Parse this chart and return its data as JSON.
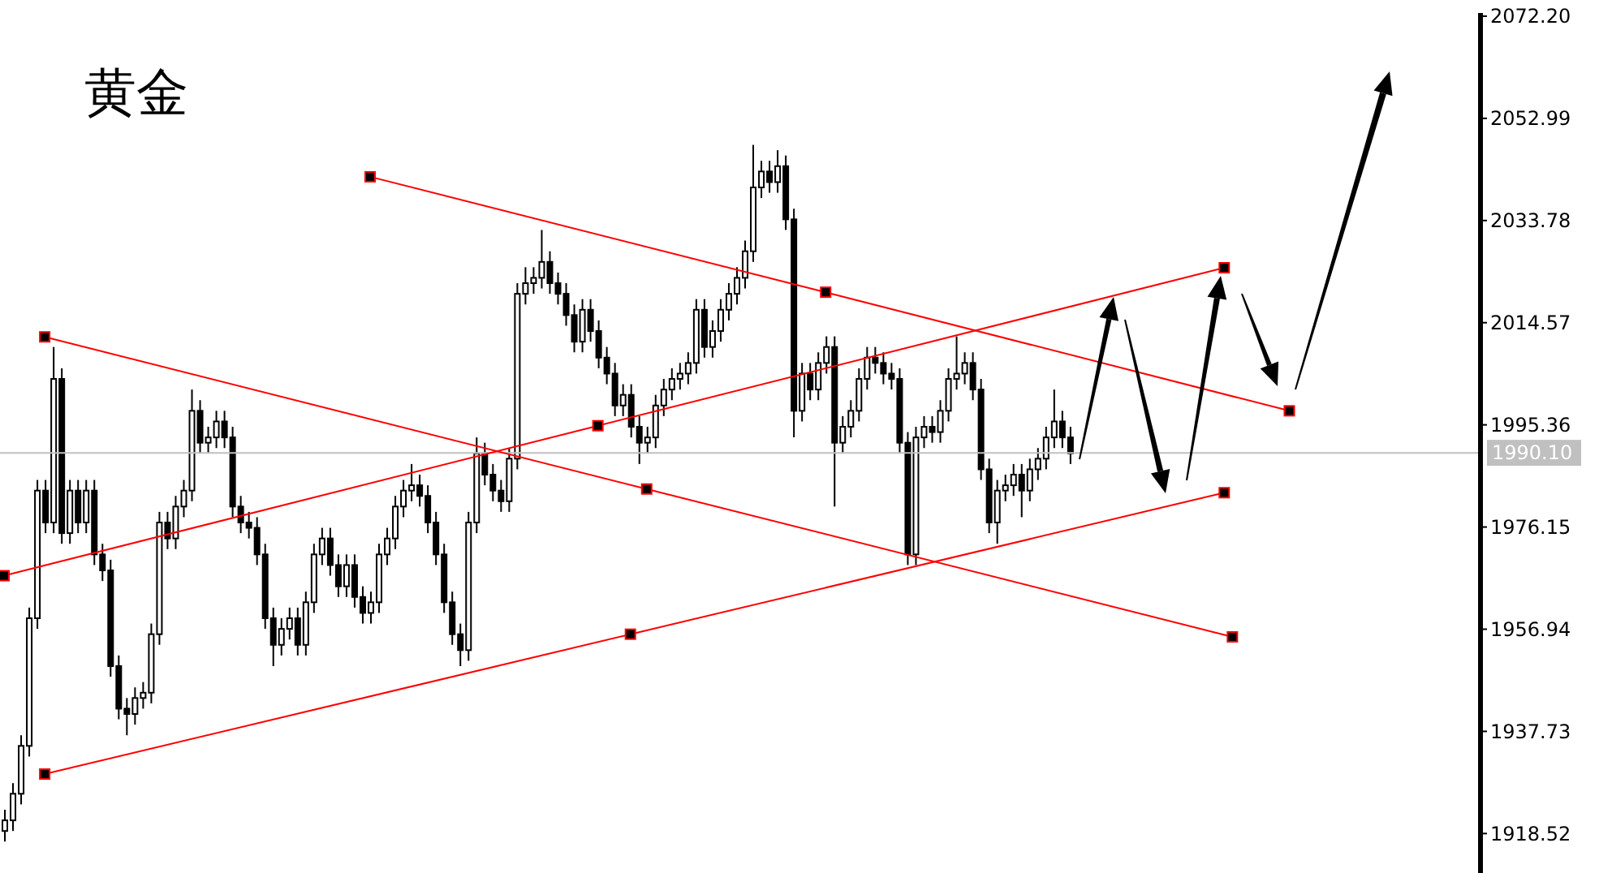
{
  "chart_data": {
    "type": "candlestick",
    "title": "黄金",
    "categories": [
      null,
      null,
      null,
      null,
      null,
      null,
      null,
      null,
      null,
      null,
      null,
      null,
      null,
      null,
      null,
      null,
      null,
      null,
      null,
      null,
      null,
      null,
      null,
      null,
      null,
      null,
      null,
      null,
      null,
      null,
      null,
      null,
      null,
      null,
      null,
      null,
      null,
      null,
      null,
      null,
      null,
      null,
      null,
      null,
      null,
      null,
      null,
      null,
      null,
      null,
      null,
      null,
      null,
      null,
      null,
      null,
      null,
      null,
      null,
      null,
      null,
      null,
      null,
      null,
      null,
      null,
      null,
      null,
      null,
      null,
      null,
      null,
      null,
      null,
      null,
      null,
      null,
      null,
      null,
      null,
      null,
      null,
      null,
      null,
      null,
      null,
      null,
      null,
      null,
      null,
      null,
      null,
      null,
      null,
      null,
      null,
      null,
      null,
      null,
      null,
      null,
      null,
      null,
      null,
      null,
      null,
      null,
      null,
      null,
      null,
      null,
      null,
      null,
      null,
      null,
      null,
      null,
      null,
      null,
      null,
      null,
      null,
      null,
      null,
      null,
      null,
      null,
      null,
      null,
      null,
      null,
      null,
      null,
      null,
      null,
      null,
      null,
      null,
      null,
      null,
      null,
      null,
      null,
      null,
      null,
      null,
      null,
      null,
      null,
      null,
      null,
      null,
      null,
      null,
      null,
      null,
      null,
      null,
      null,
      null,
      null,
      null,
      null,
      null,
      null,
      null,
      null,
      null,
      null,
      null,
      null,
      null,
      null,
      null,
      null,
      null,
      null,
      null,
      null,
      null,
      null,
      null
    ],
    "ohlc": [
      [
        1919,
        1923,
        1917,
        1921
      ],
      [
        1921,
        1928,
        1919,
        1926
      ],
      [
        1926,
        1937,
        1924,
        1935
      ],
      [
        1935,
        1961,
        1933,
        1959
      ],
      [
        1959,
        1985,
        1957,
        1983
      ],
      [
        1983,
        1985,
        1975,
        1977
      ],
      [
        1977,
        2010,
        1975,
        2004
      ],
      [
        2004,
        2006,
        1973,
        1975
      ],
      [
        1975,
        1985,
        1973,
        1983
      ],
      [
        1983,
        1985,
        1975,
        1977
      ],
      [
        1977,
        1985,
        1975,
        1983
      ],
      [
        1983,
        1985,
        1969,
        1971
      ],
      [
        1971,
        1973,
        1966,
        1968
      ],
      [
        1968,
        1970,
        1948,
        1950
      ],
      [
        1950,
        1952,
        1940,
        1942
      ],
      [
        1942,
        1944,
        1937,
        1941
      ],
      [
        1941,
        1946,
        1939,
        1944
      ],
      [
        1944,
        1947,
        1942,
        1945
      ],
      [
        1945,
        1958,
        1943,
        1956
      ],
      [
        1956,
        1979,
        1954,
        1977
      ],
      [
        1977,
        1979,
        1972,
        1974
      ],
      [
        1974,
        1982,
        1972,
        1980
      ],
      [
        1980,
        1985,
        1978,
        1983
      ],
      [
        1983,
        2002,
        1981,
        1998
      ],
      [
        1998,
        2000,
        1990,
        1992
      ],
      [
        1992,
        1995,
        1990,
        1993
      ],
      [
        1993,
        1998,
        1991,
        1996
      ],
      [
        1996,
        1998,
        1991,
        1993
      ],
      [
        1993,
        1995,
        1978,
        1980
      ],
      [
        1980,
        1982,
        1975,
        1977
      ],
      [
        1977,
        1979,
        1974,
        1976
      ],
      [
        1976,
        1978,
        1969,
        1971
      ],
      [
        1971,
        1973,
        1957,
        1959
      ],
      [
        1959,
        1961,
        1950,
        1954
      ],
      [
        1954,
        1959,
        1952,
        1957
      ],
      [
        1957,
        1961,
        1955,
        1959
      ],
      [
        1959,
        1961,
        1952,
        1954
      ],
      [
        1954,
        1964,
        1952,
        1962
      ],
      [
        1962,
        1973,
        1960,
        1971
      ],
      [
        1971,
        1976,
        1969,
        1974
      ],
      [
        1974,
        1976,
        1967,
        1969
      ],
      [
        1969,
        1971,
        1963,
        1965
      ],
      [
        1965,
        1971,
        1963,
        1969
      ],
      [
        1969,
        1971,
        1961,
        1963
      ],
      [
        1963,
        1965,
        1958,
        1960
      ],
      [
        1960,
        1964,
        1958,
        1962
      ],
      [
        1962,
        1973,
        1960,
        1971
      ],
      [
        1971,
        1976,
        1969,
        1974
      ],
      [
        1974,
        1982,
        1972,
        1980
      ],
      [
        1980,
        1985,
        1978,
        1983
      ],
      [
        1983,
        1988,
        1981,
        1984
      ],
      [
        1984,
        1986,
        1980,
        1982
      ],
      [
        1982,
        1984,
        1975,
        1977
      ],
      [
        1977,
        1979,
        1969,
        1971
      ],
      [
        1971,
        1973,
        1960,
        1962
      ],
      [
        1962,
        1964,
        1954,
        1956
      ],
      [
        1956,
        1958,
        1950,
        1953
      ],
      [
        1953,
        1979,
        1951,
        1977
      ],
      [
        1977,
        1993,
        1975,
        1990
      ],
      [
        1990,
        1992,
        1984,
        1986
      ],
      [
        1986,
        1988,
        1981,
        1983
      ],
      [
        1983,
        1985,
        1979,
        1981
      ],
      [
        1981,
        1991,
        1979,
        1989
      ],
      [
        1989,
        2022,
        1987,
        2020
      ],
      [
        2020,
        2025,
        2018,
        2022
      ],
      [
        2022,
        2025,
        2020,
        2023
      ],
      [
        2023,
        2032,
        2021,
        2026
      ],
      [
        2026,
        2028,
        2020,
        2022
      ],
      [
        2022,
        2024,
        2018,
        2020
      ],
      [
        2020,
        2022,
        2014,
        2016
      ],
      [
        2016,
        2018,
        2009,
        2011
      ],
      [
        2011,
        2019,
        2009,
        2017
      ],
      [
        2017,
        2019,
        2011,
        2013
      ],
      [
        2013,
        2015,
        2006,
        2008
      ],
      [
        2008,
        2010,
        2003,
        2005
      ],
      [
        2005,
        2007,
        1997,
        1999
      ],
      [
        1999,
        2003,
        1997,
        2001
      ],
      [
        2001,
        2003,
        1993,
        1995
      ],
      [
        1995,
        1997,
        1988,
        1992
      ],
      [
        1992,
        1995,
        1990,
        1993
      ],
      [
        1993,
        2001,
        1991,
        1999
      ],
      [
        1999,
        2004,
        1997,
        2002
      ],
      [
        2002,
        2006,
        2000,
        2004
      ],
      [
        2004,
        2007,
        2002,
        2005
      ],
      [
        2005,
        2009,
        2003,
        2007
      ],
      [
        2007,
        2019,
        2005,
        2017
      ],
      [
        2017,
        2019,
        2008,
        2010
      ],
      [
        2010,
        2015,
        2008,
        2013
      ],
      [
        2013,
        2019,
        2011,
        2017
      ],
      [
        2017,
        2022,
        2015,
        2020
      ],
      [
        2020,
        2025,
        2018,
        2023
      ],
      [
        2023,
        2030,
        2021,
        2028
      ],
      [
        2028,
        2048,
        2026,
        2040
      ],
      [
        2040,
        2045,
        2038,
        2043
      ],
      [
        2043,
        2045,
        2039,
        2041
      ],
      [
        2041,
        2047,
        2039,
        2044
      ],
      [
        2044,
        2046,
        2032,
        2034
      ],
      [
        2034,
        2036,
        1993,
        1998
      ],
      [
        1998,
        2007,
        1996,
        2005
      ],
      [
        2005,
        2007,
        2000,
        2002
      ],
      [
        2002,
        2009,
        2000,
        2007
      ],
      [
        2007,
        2012,
        2005,
        2010
      ],
      [
        2010,
        2012,
        1980,
        1992
      ],
      [
        1992,
        1997,
        1990,
        1995
      ],
      [
        1995,
        2000,
        1993,
        1998
      ],
      [
        1998,
        2006,
        1996,
        2004
      ],
      [
        2004,
        2010,
        2002,
        2008
      ],
      [
        2008,
        2010,
        2005,
        2007
      ],
      [
        2007,
        2009,
        2003,
        2005
      ],
      [
        2005,
        2007,
        2002,
        2004
      ],
      [
        2004,
        2006,
        1990,
        1992
      ],
      [
        1992,
        1994,
        1969,
        1971
      ],
      [
        1971,
        1995,
        1969,
        1993
      ],
      [
        1993,
        1997,
        1991,
        1995
      ],
      [
        1995,
        1997,
        1992,
        1994
      ],
      [
        1994,
        2000,
        1992,
        1998
      ],
      [
        1998,
        2006,
        1996,
        2004
      ],
      [
        2004,
        2012,
        2002,
        2005
      ],
      [
        2005,
        2009,
        2003,
        2007
      ],
      [
        2007,
        2009,
        2000,
        2002
      ],
      [
        2002,
        2004,
        1985,
        1987
      ],
      [
        1987,
        1989,
        1975,
        1977
      ],
      [
        1977,
        1985,
        1973,
        1983
      ],
      [
        1983,
        1986,
        1981,
        1984
      ],
      [
        1984,
        1988,
        1982,
        1986
      ],
      [
        1986,
        1988,
        1978,
        1983
      ],
      [
        1983,
        1989,
        1981,
        1987
      ],
      [
        1987,
        1991,
        1985,
        1989
      ],
      [
        1989,
        1995,
        1987,
        1993
      ],
      [
        1993,
        2002,
        1991,
        1996
      ],
      [
        1996,
        1998,
        1991,
        1993
      ],
      [
        1993,
        1995,
        1988,
        1990
      ],
      null,
      null,
      null,
      null,
      null,
      null,
      null,
      null,
      null,
      null,
      null,
      null,
      null,
      null,
      null,
      null,
      null,
      null,
      null,
      null,
      null,
      null,
      null,
      null,
      null,
      null,
      null,
      null,
      null,
      null,
      null,
      null,
      null,
      null,
      null,
      null,
      null,
      null,
      null,
      null,
      null,
      null,
      null,
      null,
      null,
      null,
      null,
      null,
      null,
      null
    ],
    "series": [
      {
        "type": "line",
        "color": "#ff0000",
        "values": [
          null,
          null,
          null,
          null,
          null,
          null,
          null,
          null,
          null,
          null,
          null,
          null,
          null,
          null,
          null,
          null,
          null,
          null,
          null,
          null,
          null,
          null,
          null,
          null,
          null,
          null,
          null,
          null,
          null,
          null,
          null,
          null,
          null,
          null,
          null,
          null,
          null,
          null,
          null,
          null,
          null,
          null,
          null,
          null,
          null,
          2042,
          null,
          null,
          null,
          null,
          null,
          null,
          null,
          null,
          null,
          null,
          null,
          null,
          null,
          null,
          null,
          null,
          null,
          null,
          null,
          null,
          null,
          null,
          null,
          null,
          null,
          null,
          null,
          null,
          null,
          null,
          null,
          null,
          null,
          null,
          null,
          null,
          null,
          null,
          null,
          null,
          null,
          null,
          null,
          null,
          null,
          null,
          null,
          null,
          null,
          null,
          null,
          null,
          null,
          null,
          null,
          2020.3,
          null,
          null,
          null,
          null,
          null,
          null,
          null,
          null,
          null,
          null,
          null,
          null,
          null,
          null,
          null,
          null,
          null,
          null,
          null,
          null,
          null,
          null,
          null,
          null,
          null,
          null,
          null,
          null,
          null,
          null,
          null,
          null,
          null,
          null,
          null,
          null,
          null,
          null,
          null,
          null,
          null,
          null,
          null,
          null,
          null,
          null,
          null,
          null,
          null,
          null,
          null,
          null,
          null,
          null,
          null,
          null,
          1998,
          null,
          null,
          null,
          null,
          null,
          null,
          null,
          null,
          null,
          null,
          null,
          null,
          null,
          null,
          null,
          null,
          null,
          null,
          null,
          null,
          null,
          null,
          null
        ]
      },
      {
        "type": "line",
        "color": "#ff0000",
        "values": [
          null,
          null,
          null,
          null,
          null,
          2011.9,
          null,
          null,
          null,
          null,
          null,
          null,
          null,
          null,
          null,
          null,
          null,
          null,
          null,
          null,
          null,
          null,
          null,
          null,
          null,
          null,
          null,
          null,
          null,
          null,
          null,
          null,
          null,
          null,
          null,
          null,
          null,
          null,
          null,
          null,
          null,
          null,
          null,
          null,
          null,
          null,
          null,
          null,
          null,
          null,
          null,
          null,
          null,
          null,
          null,
          null,
          null,
          null,
          null,
          null,
          null,
          null,
          null,
          null,
          null,
          null,
          null,
          null,
          null,
          null,
          null,
          null,
          null,
          null,
          null,
          null,
          null,
          null,
          null,
          1983.3,
          null,
          null,
          null,
          null,
          null,
          null,
          null,
          null,
          null,
          null,
          null,
          null,
          null,
          null,
          null,
          null,
          null,
          null,
          null,
          null,
          null,
          null,
          null,
          null,
          null,
          null,
          null,
          null,
          null,
          null,
          null,
          null,
          null,
          null,
          null,
          null,
          null,
          null,
          null,
          null,
          null,
          null,
          null,
          null,
          null,
          null,
          null,
          null,
          null,
          null,
          null,
          null,
          null,
          null,
          null,
          null,
          null,
          null,
          null,
          null,
          null,
          null,
          null,
          null,
          null,
          null,
          null,
          null,
          null,
          null,
          null,
          1955.5,
          null,
          null,
          null,
          null,
          null,
          null,
          null,
          null,
          null,
          null,
          null,
          null,
          null,
          null,
          null,
          null,
          null,
          null,
          null,
          null,
          null,
          null,
          null,
          null,
          null,
          null,
          null,
          null,
          null,
          null
        ]
      },
      {
        "type": "line",
        "color": "#ff0000",
        "values": [
          1967,
          null,
          null,
          null,
          null,
          null,
          null,
          null,
          null,
          null,
          null,
          null,
          null,
          null,
          null,
          null,
          null,
          null,
          null,
          null,
          null,
          null,
          null,
          null,
          null,
          null,
          null,
          null,
          null,
          null,
          null,
          null,
          null,
          null,
          null,
          null,
          null,
          null,
          null,
          null,
          null,
          null,
          null,
          null,
          null,
          null,
          null,
          null,
          null,
          null,
          null,
          null,
          null,
          null,
          null,
          null,
          null,
          null,
          null,
          null,
          null,
          null,
          null,
          null,
          null,
          null,
          null,
          null,
          null,
          null,
          null,
          null,
          null,
          1995.2,
          null,
          null,
          null,
          null,
          null,
          null,
          null,
          null,
          null,
          null,
          null,
          null,
          null,
          null,
          null,
          null,
          null,
          null,
          null,
          null,
          null,
          null,
          null,
          null,
          null,
          null,
          null,
          null,
          null,
          null,
          null,
          null,
          null,
          null,
          null,
          null,
          null,
          null,
          null,
          null,
          null,
          null,
          null,
          null,
          null,
          null,
          null,
          null,
          null,
          null,
          null,
          null,
          null,
          null,
          null,
          null,
          null,
          null,
          null,
          null,
          null,
          null,
          null,
          null,
          null,
          null,
          null,
          null,
          null,
          null,
          null,
          null,
          null,
          null,
          null,
          null,
          2024.9,
          null,
          null,
          null,
          null,
          null,
          null,
          null,
          null,
          null,
          null,
          null,
          null,
          null,
          null,
          null,
          null,
          null,
          null,
          null,
          null,
          null,
          null,
          null,
          null,
          null,
          null,
          null,
          null,
          null,
          null,
          null
        ]
      },
      {
        "type": "line",
        "color": "#ff0000",
        "values": [
          null,
          null,
          null,
          null,
          null,
          1929.7,
          null,
          null,
          null,
          null,
          null,
          null,
          null,
          null,
          null,
          null,
          null,
          null,
          null,
          null,
          null,
          null,
          null,
          null,
          null,
          null,
          null,
          null,
          null,
          null,
          null,
          null,
          null,
          null,
          null,
          null,
          null,
          null,
          null,
          null,
          null,
          null,
          null,
          null,
          null,
          null,
          null,
          null,
          null,
          null,
          null,
          null,
          null,
          null,
          null,
          null,
          null,
          null,
          null,
          null,
          null,
          null,
          null,
          null,
          null,
          null,
          null,
          null,
          null,
          null,
          null,
          null,
          null,
          null,
          null,
          null,
          null,
          1956,
          null,
          null,
          null,
          null,
          null,
          null,
          null,
          null,
          null,
          null,
          null,
          null,
          null,
          null,
          null,
          null,
          null,
          null,
          null,
          null,
          null,
          null,
          null,
          null,
          null,
          null,
          null,
          null,
          null,
          null,
          null,
          null,
          null,
          null,
          null,
          null,
          null,
          null,
          null,
          null,
          null,
          null,
          null,
          null,
          null,
          null,
          null,
          null,
          null,
          null,
          null,
          null,
          null,
          null,
          null,
          null,
          null,
          null,
          null,
          null,
          null,
          null,
          null,
          null,
          null,
          null,
          null,
          null,
          null,
          null,
          null,
          null,
          1982.6,
          null,
          null,
          null,
          null,
          null,
          null,
          null,
          null,
          null,
          null,
          null,
          null,
          null,
          null,
          null,
          null,
          null,
          null,
          null,
          null,
          null,
          null,
          null,
          null,
          null,
          null,
          null,
          null,
          null,
          null,
          null
        ]
      }
    ],
    "marker": "square",
    "ylim": [
      1911.1,
      2072.8
    ],
    "yticks": [
      1918.52,
      1937.73,
      1956.94,
      1976.15,
      1995.36,
      2014.57,
      2033.78,
      2052.99,
      {
        "value": 2072.2,
        "label": "2072.20"
      }
    ],
    "ref_lines": [
      {
        "axis": "y",
        "value": 1990.1,
        "label": "1990.10",
        "color": "#c0c0c0"
      }
    ],
    "tick_labels": "y"
  }
}
